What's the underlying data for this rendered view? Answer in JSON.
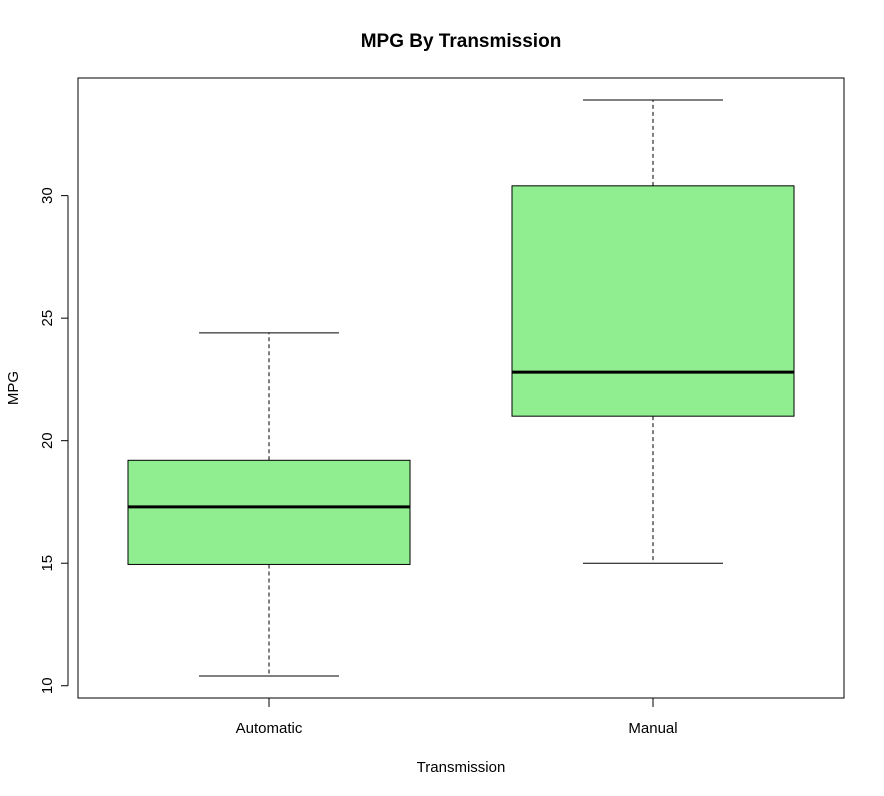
{
  "chart_data": {
    "type": "boxplot",
    "title": "MPG By Transmission",
    "xlabel": "Transmission",
    "ylabel": "MPG",
    "categories": [
      "Automatic",
      "Manual"
    ],
    "boxes": [
      {
        "category": "Automatic",
        "min": 10.4,
        "q1": 14.95,
        "median": 17.3,
        "q3": 19.2,
        "max": 24.4
      },
      {
        "category": "Manual",
        "min": 15.0,
        "q1": 21.0,
        "median": 22.8,
        "q3": 30.4,
        "max": 33.9
      }
    ],
    "ylim": [
      9.5,
      34.8
    ],
    "yticks": [
      10,
      15,
      20,
      25,
      30
    ],
    "box_fill": "#90EE90",
    "grid": false,
    "legend": "none"
  }
}
